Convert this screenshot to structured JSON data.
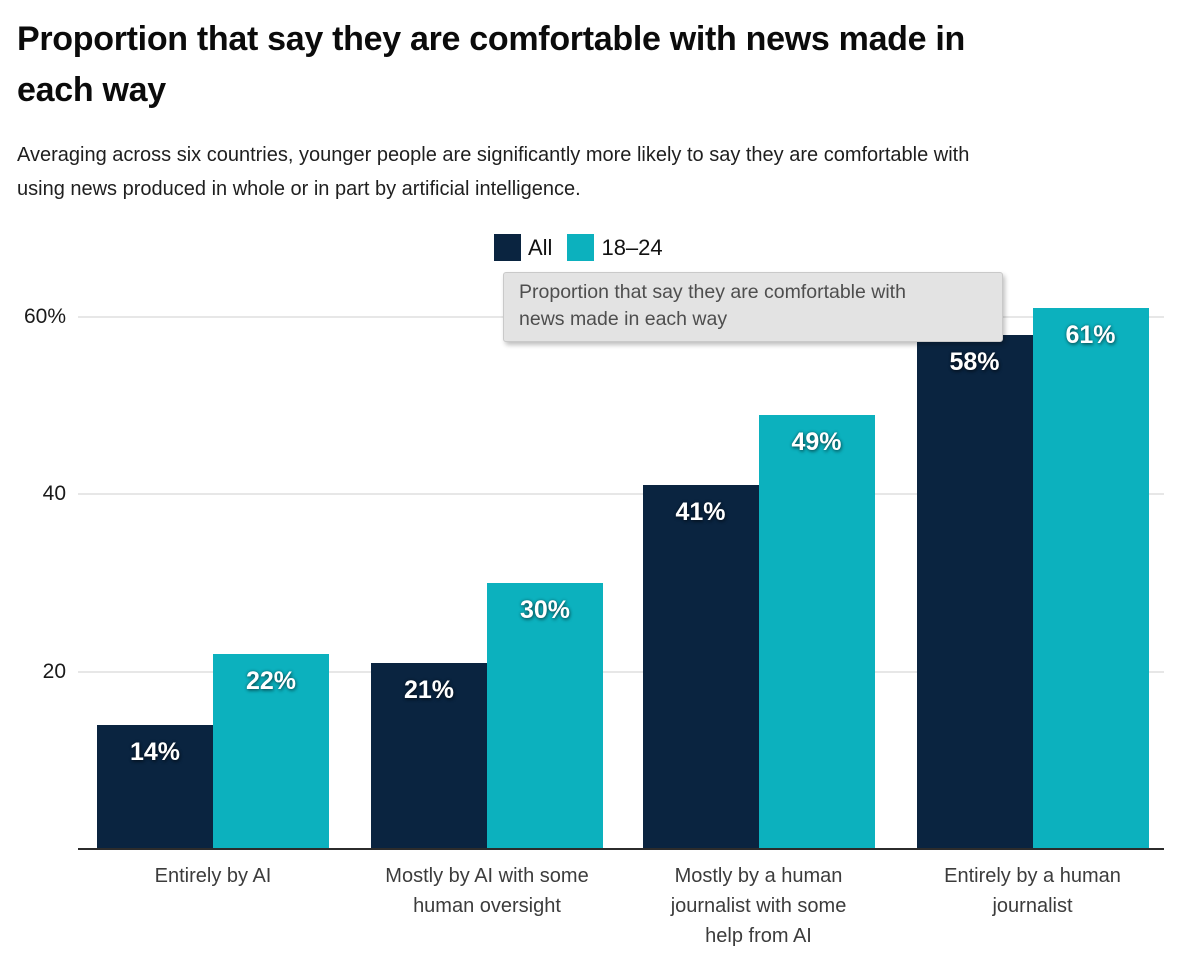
{
  "header": {
    "title_lines": [
      "Proportion that say they are comfortable with news made in",
      "each way"
    ],
    "subtitle_lines": [
      "Averaging across six countries, younger people are significantly more likely to say they are comfortable with",
      "using news produced in whole or in part by artificial intelligence."
    ]
  },
  "legend": {
    "items": [
      {
        "label": "All",
        "color": "#0a2440"
      },
      {
        "label": "18–24",
        "color": "#0cb1be"
      }
    ]
  },
  "tooltip": {
    "lines": [
      "Proportion that say they are comfortable with",
      "news made in each way"
    ],
    "background": "#e3e3e3",
    "text_color": "#4e4e4e"
  },
  "chart_data": {
    "type": "bar",
    "title": "Proportion that say they are comfortable with news made in each way",
    "subtitle": "Averaging across six countries, younger people are significantly more likely to say they are comfortable with using news produced in whole or in part by artificial intelligence.",
    "categories": [
      "Entirely by AI",
      "Mostly by AI with some human oversight",
      "Mostly by a human journalist with some help from AI",
      "Entirely by a human journalist"
    ],
    "category_lines": [
      [
        "Entirely by AI"
      ],
      [
        "Mostly by AI with some",
        "human oversight"
      ],
      [
        "Mostly by a human",
        "journalist with some",
        "help from AI"
      ],
      [
        "Entirely by a human",
        "journalist"
      ]
    ],
    "series": [
      {
        "name": "All",
        "color": "#0a2440",
        "values": [
          14,
          21,
          41,
          58
        ],
        "labels": [
          "14%",
          "21%",
          "41%",
          "58%"
        ]
      },
      {
        "name": "18–24",
        "color": "#0cb1be",
        "values": [
          22,
          30,
          49,
          61
        ],
        "labels": [
          "22%",
          "30%",
          "49%",
          "61%"
        ]
      }
    ],
    "unit": "%",
    "ylim": [
      0,
      64
    ],
    "yticks": [
      {
        "value": 20,
        "label": "20"
      },
      {
        "value": 40,
        "label": "40"
      },
      {
        "value": 60,
        "label": "60%"
      }
    ],
    "grid": "horizontal",
    "legend_position": "top-center",
    "accent_colors": {
      "navy": "#0a2440",
      "teal": "#0cb1be",
      "gridline": "#e7e7e7",
      "axis": "#2c2c2c"
    }
  }
}
